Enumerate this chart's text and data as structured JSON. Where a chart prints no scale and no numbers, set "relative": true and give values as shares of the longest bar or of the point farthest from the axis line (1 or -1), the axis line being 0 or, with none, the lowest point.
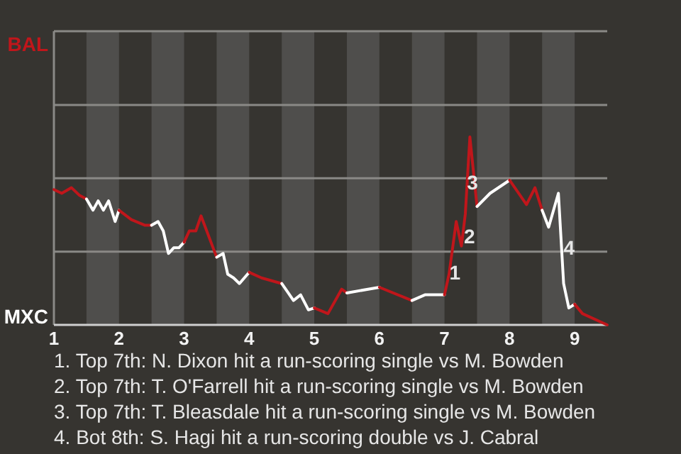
{
  "chart_data": {
    "type": "line",
    "relative": true,
    "series": [
      {
        "color": "#c0161b",
        "x": [
          1,
          1.12,
          1.27,
          1.39,
          1.5
        ],
        "values": [
          0.72,
          0.7,
          0.73,
          0.69,
          0.67
        ]
      },
      {
        "color": "#ffffff",
        "x": [
          1.5,
          1.6,
          1.68,
          1.76,
          1.84,
          1.94,
          2
        ],
        "values": [
          0.67,
          0.61,
          0.66,
          0.61,
          0.66,
          0.55,
          0.61
        ]
      },
      {
        "color": "#c0161b",
        "x": [
          2,
          2.19,
          2.4,
          2.5
        ],
        "values": [
          0.61,
          0.56,
          0.53,
          0.53
        ]
      },
      {
        "color": "#ffffff",
        "x": [
          2.5,
          2.6,
          2.68,
          2.76,
          2.84,
          2.92,
          3
        ],
        "values": [
          0.53,
          0.55,
          0.5,
          0.38,
          0.41,
          0.41,
          0.44
        ]
      },
      {
        "color": "#c0161b",
        "x": [
          3,
          3.08,
          3.18,
          3.26,
          3.5
        ],
        "values": [
          0.44,
          0.5,
          0.5,
          0.58,
          0.36
        ]
      },
      {
        "color": "#ffffff",
        "x": [
          3.5,
          3.6,
          3.67,
          3.76,
          3.85,
          4
        ],
        "values": [
          0.36,
          0.38,
          0.27,
          0.25,
          0.22,
          0.28
        ]
      },
      {
        "color": "#c0161b",
        "x": [
          4,
          4.19,
          4.5
        ],
        "values": [
          0.28,
          0.25,
          0.22
        ]
      },
      {
        "color": "#ffffff",
        "x": [
          4.5,
          4.6,
          4.68,
          4.79,
          4.91,
          5
        ],
        "values": [
          0.22,
          0.17,
          0.13,
          0.16,
          0.08,
          0.09
        ]
      },
      {
        "color": "#c0161b",
        "x": [
          5,
          5.21,
          5.42,
          5.5
        ],
        "values": [
          0.09,
          0.06,
          0.19,
          0.17
        ]
      },
      {
        "color": "#ffffff",
        "x": [
          5.5,
          6
        ],
        "values": [
          0.17,
          0.2
        ]
      },
      {
        "color": "#c0161b",
        "x": [
          6,
          6.5
        ],
        "values": [
          0.2,
          0.13
        ]
      },
      {
        "color": "#ffffff",
        "x": [
          6.5,
          6.7,
          7
        ],
        "values": [
          0.13,
          0.16,
          0.16
        ]
      },
      {
        "color": "#c0161b",
        "x": [
          7,
          7.07,
          7.18,
          7.26,
          7.32,
          7.39,
          7.5
        ],
        "values": [
          0.16,
          0.27,
          0.55,
          0.42,
          0.59,
          1,
          0.63
        ]
      },
      {
        "color": "#ffffff",
        "x": [
          7.5,
          7.7,
          8
        ],
        "values": [
          0.63,
          0.7,
          0.77
        ]
      },
      {
        "color": "#c0161b",
        "x": [
          8,
          8.26,
          8.39,
          8.5
        ],
        "values": [
          0.77,
          0.64,
          0.73,
          0.61
        ]
      },
      {
        "color": "#ffffff",
        "x": [
          8.5,
          8.6,
          8.75,
          8.83,
          8.91,
          9
        ],
        "values": [
          0.61,
          0.52,
          0.7,
          0.22,
          0.09,
          0.11
        ]
      },
      {
        "color": "#c0161b",
        "x": [
          9,
          9.12,
          9.5
        ],
        "values": [
          0.11,
          0.06,
          0
        ]
      }
    ],
    "xlim": [
      1,
      9.5
    ],
    "xticks": [
      1,
      2,
      3,
      4,
      5,
      6,
      7,
      8,
      9
    ],
    "ref_lines": [
      {
        "axis": "y",
        "value": 0.39,
        "color": "#8a8986"
      },
      {
        "axis": "y",
        "value": 0.78,
        "color": "#8a8986"
      },
      {
        "axis": "y",
        "value": 1.17,
        "color": "#8a8986"
      }
    ],
    "bands": [
      {
        "axis": "x",
        "from": 1.5,
        "to": 2,
        "color": "#4f4e4c"
      },
      {
        "axis": "x",
        "from": 2.5,
        "to": 3,
        "color": "#4f4e4c"
      },
      {
        "axis": "x",
        "from": 3.5,
        "to": 4,
        "color": "#4f4e4c"
      },
      {
        "axis": "x",
        "from": 4.5,
        "to": 5,
        "color": "#4f4e4c"
      },
      {
        "axis": "x",
        "from": 5.5,
        "to": 6,
        "color": "#4f4e4c"
      },
      {
        "axis": "x",
        "from": 6.5,
        "to": 7,
        "color": "#4f4e4c"
      },
      {
        "axis": "x",
        "from": 7.5,
        "to": 8,
        "color": "#4f4e4c"
      },
      {
        "axis": "x",
        "from": 8.5,
        "to": 9,
        "color": "#4f4e4c"
      }
    ],
    "annotations": [
      {
        "text": "1",
        "x": 7.16,
        "y": 0.28
      },
      {
        "text": "2",
        "x": 7.385,
        "y": 0.47
      },
      {
        "text": "3",
        "x": 7.43,
        "y": 0.76
      },
      {
        "text": "4",
        "x": 8.915,
        "y": 0.41
      },
      "BAL",
      "MXC",
      "1. Top 7th: N. Dixon hit a run-scoring single vs M. Bowden",
      "2. Top 7th: T. O'Farrell hit a run-scoring single vs M. Bowden",
      "3. Top 7th: T. Bleasdale hit a run-scoring single vs M. Bowden",
      "4. Bot 8th: S. Hagi hit a run-scoring double vs J. Cabral"
    ]
  }
}
